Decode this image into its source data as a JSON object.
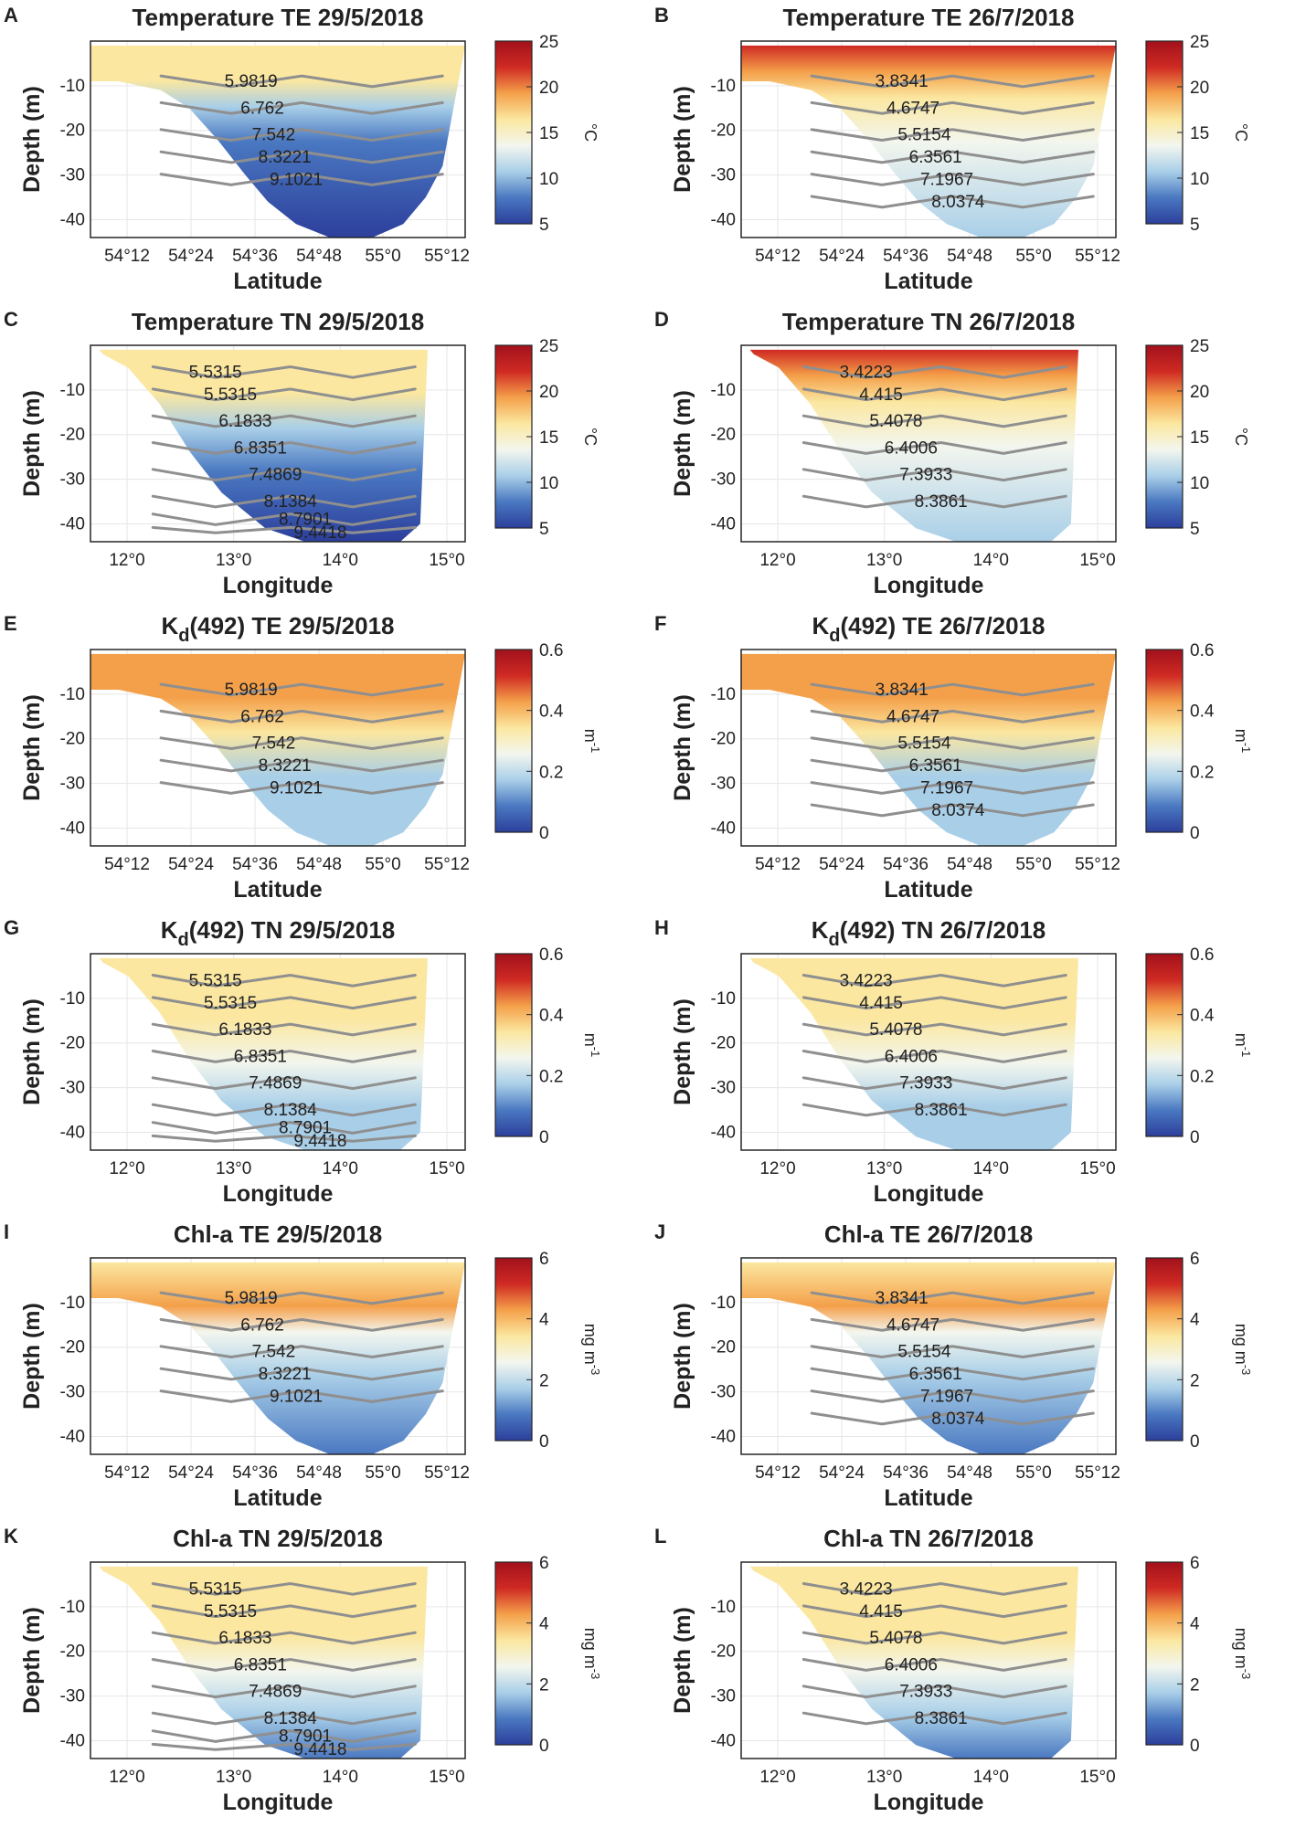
{
  "chart_data": [
    {
      "id": "A",
      "type": "heatmap",
      "title": "Temperature TE 29/5/2018",
      "axis": "lat",
      "variable": "temp",
      "xlabel": "Latitude",
      "ylabel": "Depth (m)",
      "cb": {
        "unit": "°C",
        "min": 5,
        "max": 25,
        "ticks": [
          "25",
          "20",
          "15",
          "10",
          "5"
        ]
      },
      "contour_labels": [
        "5.9819",
        "6.762",
        "7.542",
        "8.3221",
        "9.1021"
      ]
    },
    {
      "id": "B",
      "type": "heatmap",
      "title": "Temperature TE 26/7/2018",
      "axis": "lat",
      "variable": "temp",
      "xlabel": "Latitude",
      "ylabel": "Depth (m)",
      "cb": {
        "unit": "°C",
        "min": 5,
        "max": 25,
        "ticks": [
          "25",
          "20",
          "15",
          "10",
          "5"
        ]
      },
      "contour_labels": [
        "3.8341",
        "4.6747",
        "5.5154",
        "6.3561",
        "7.1967",
        "8.0374"
      ]
    },
    {
      "id": "C",
      "type": "heatmap",
      "title": "Temperature TN 29/5/2018",
      "axis": "lon",
      "variable": "temp",
      "xlabel": "Longitude",
      "ylabel": "Depth (m)",
      "cb": {
        "unit": "°C",
        "min": 5,
        "max": 25,
        "ticks": [
          "25",
          "20",
          "15",
          "10",
          "5"
        ]
      },
      "contour_labels": [
        "5.5315",
        "5.5315",
        "6.1833",
        "6.8351",
        "7.4869",
        "8.1384",
        "8.7901",
        "9.4418"
      ]
    },
    {
      "id": "D",
      "type": "heatmap",
      "title": "Temperature TN 26/7/2018",
      "axis": "lon",
      "variable": "temp",
      "xlabel": "Longitude",
      "ylabel": "Depth (m)",
      "cb": {
        "unit": "°C",
        "min": 5,
        "max": 25,
        "ticks": [
          "25",
          "20",
          "15",
          "10",
          "5"
        ]
      },
      "contour_labels": [
        "3.4223",
        "4.415",
        "5.4078",
        "6.4006",
        "7.3933",
        "8.3861"
      ]
    },
    {
      "id": "E",
      "type": "heatmap",
      "title": "Kd(492) TE 29/5/2018",
      "title_main": "K",
      "title_sub": "d",
      "title_rest": "(492) TE 29/5/2018",
      "axis": "lat",
      "variable": "kd",
      "xlabel": "Latitude",
      "ylabel": "Depth (m)",
      "cb": {
        "unit": "m-1",
        "unit_main": "m",
        "unit_sup": "-1",
        "min": 0,
        "max": 0.6,
        "ticks": [
          "0.6",
          "0.4",
          "0.2",
          "0"
        ]
      },
      "contour_labels": [
        "5.9819",
        "6.762",
        "7.542",
        "8.3221",
        "9.1021"
      ]
    },
    {
      "id": "F",
      "type": "heatmap",
      "title": "Kd(492) TE 26/7/2018",
      "title_main": "K",
      "title_sub": "d",
      "title_rest": "(492) TE 26/7/2018",
      "axis": "lat",
      "variable": "kd",
      "xlabel": "Latitude",
      "ylabel": "Depth (m)",
      "cb": {
        "unit": "m-1",
        "unit_main": "m",
        "unit_sup": "-1",
        "min": 0,
        "max": 0.6,
        "ticks": [
          "0.6",
          "0.4",
          "0.2",
          "0"
        ]
      },
      "contour_labels": [
        "3.8341",
        "4.6747",
        "5.5154",
        "6.3561",
        "7.1967",
        "8.0374"
      ]
    },
    {
      "id": "G",
      "type": "heatmap",
      "title": "Kd(492) TN 29/5/2018",
      "title_main": "K",
      "title_sub": "d",
      "title_rest": "(492) TN 29/5/2018",
      "axis": "lon",
      "variable": "kd",
      "xlabel": "Longitude",
      "ylabel": "Depth (m)",
      "cb": {
        "unit": "m-1",
        "unit_main": "m",
        "unit_sup": "-1",
        "min": 0,
        "max": 0.6,
        "ticks": [
          "0.6",
          "0.4",
          "0.2",
          "0"
        ]
      },
      "contour_labels": [
        "5.5315",
        "5.5315",
        "6.1833",
        "6.8351",
        "7.4869",
        "8.1384",
        "8.7901",
        "9.4418"
      ]
    },
    {
      "id": "H",
      "type": "heatmap",
      "title": "Kd(492) TN 26/7/2018",
      "title_main": "K",
      "title_sub": "d",
      "title_rest": "(492) TN 26/7/2018",
      "axis": "lon",
      "variable": "kd",
      "xlabel": "Longitude",
      "ylabel": "Depth (m)",
      "cb": {
        "unit": "m-1",
        "unit_main": "m",
        "unit_sup": "-1",
        "min": 0,
        "max": 0.6,
        "ticks": [
          "0.6",
          "0.4",
          "0.2",
          "0"
        ]
      },
      "contour_labels": [
        "3.4223",
        "4.415",
        "5.4078",
        "6.4006",
        "7.3933",
        "8.3861"
      ]
    },
    {
      "id": "I",
      "type": "heatmap",
      "title": "Chl-a TE 29/5/2018",
      "axis": "lat",
      "variable": "chl",
      "xlabel": "Latitude",
      "ylabel": "Depth (m)",
      "cb": {
        "unit": "mg m-3",
        "unit_main": "mg m",
        "unit_sup": "-3",
        "min": 0,
        "max": 6,
        "ticks": [
          "6",
          "4",
          "2",
          "0"
        ]
      },
      "contour_labels": [
        "5.9819",
        "6.762",
        "7.542",
        "8.3221",
        "9.1021"
      ]
    },
    {
      "id": "J",
      "type": "heatmap",
      "title": "Chl-a TE 26/7/2018",
      "axis": "lat",
      "variable": "chl",
      "xlabel": "Latitude",
      "ylabel": "Depth (m)",
      "cb": {
        "unit": "mg m-3",
        "unit_main": "mg m",
        "unit_sup": "-3",
        "min": 0,
        "max": 6,
        "ticks": [
          "6",
          "4",
          "2",
          "0"
        ]
      },
      "contour_labels": [
        "3.8341",
        "4.6747",
        "5.5154",
        "6.3561",
        "7.1967",
        "8.0374"
      ]
    },
    {
      "id": "K",
      "type": "heatmap",
      "title": "Chl-a TN 29/5/2018",
      "axis": "lon",
      "variable": "chl",
      "xlabel": "Longitude",
      "ylabel": "Depth (m)",
      "cb": {
        "unit": "mg m-3",
        "unit_main": "mg m",
        "unit_sup": "-3",
        "min": 0,
        "max": 6,
        "ticks": [
          "6",
          "4",
          "2",
          "0"
        ]
      },
      "contour_labels": [
        "5.5315",
        "5.5315",
        "6.1833",
        "6.8351",
        "7.4869",
        "8.1384",
        "8.7901",
        "9.4418"
      ]
    },
    {
      "id": "L",
      "type": "heatmap",
      "title": "Chl-a TN 26/7/2018",
      "axis": "lon",
      "variable": "chl",
      "xlabel": "Longitude",
      "ylabel": "Depth (m)",
      "cb": {
        "unit": "mg m-3",
        "unit_main": "mg m",
        "unit_sup": "-3",
        "min": 0,
        "max": 6,
        "ticks": [
          "6",
          "4",
          "2",
          "0"
        ]
      },
      "contour_labels": [
        "3.4223",
        "4.415",
        "5.4078",
        "6.4006",
        "7.3933",
        "8.3861"
      ]
    }
  ],
  "axes": {
    "lat": {
      "ticks": [
        "54°12",
        "54°24",
        "54°36",
        "54°48",
        "55°0",
        "55°12"
      ]
    },
    "lon": {
      "ticks": [
        "12°0",
        "13°0",
        "14°0",
        "15°0"
      ]
    },
    "depth": {
      "ticks": [
        "-10",
        "-20",
        "-30",
        "-40"
      ],
      "ylim": [
        -44,
        0
      ]
    }
  },
  "colors": {
    "deep_blue": "#2c3f9c",
    "blue": "#4a78c1",
    "light_blue": "#a9cfe8",
    "pale": "#f3f6ee",
    "yellow": "#fbe7a0",
    "orange": "#f4a04a",
    "red": "#cf2a23",
    "dark_red": "#a2111c",
    "contour": "#8f8f8f",
    "frame": "#262626"
  }
}
